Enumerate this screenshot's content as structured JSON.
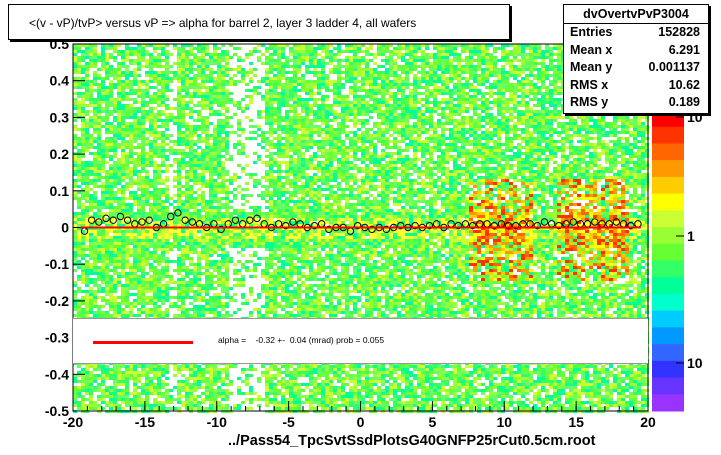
{
  "chart_data": {
    "type": "heatmap",
    "title": "<(v - vP)/tvP> versus   vP => alpha for barrel 2, layer 3 ladder 4, all wafers",
    "xlabel": "../Pass54_TpcSvtSsdPlotsG40GNFP25rCut0.5cm.root",
    "ylabel": "",
    "xlim": [
      -20,
      20
    ],
    "ylim": [
      -0.5,
      0.5
    ],
    "x_ticks": [
      "-20",
      "-15",
      "-10",
      "-5",
      "0",
      "5",
      "10",
      "15",
      "20"
    ],
    "y_ticks": [
      "-0.5",
      "-0.4",
      "-0.3",
      "-0.2",
      "-0.1",
      "0",
      "0.1",
      "0.2",
      "0.3",
      "0.4",
      "0.5"
    ],
    "colorbar": {
      "scale": "log",
      "labels": [
        "10",
        "1",
        "10"
      ]
    },
    "stats": {
      "name": "dvOvertvPvP3004",
      "rows": [
        {
          "label": "Entries",
          "value": "152828"
        },
        {
          "label": "Mean x",
          "value": "6.291"
        },
        {
          "label": "Mean y",
          "value": "0.001137"
        },
        {
          "label": "RMS x",
          "value": "10.62"
        },
        {
          "label": "RMS y",
          "value": "0.189"
        }
      ]
    },
    "fit": {
      "text": "alpha =    -0.32 +-  0.04 (mrad) prob = 0.055",
      "color": "#ff0000",
      "line_y": 0.0
    },
    "profile_points": {
      "x": [
        -19.2,
        -18.7,
        -18.2,
        -17.7,
        -17.2,
        -16.7,
        -16.2,
        -15.7,
        -15.2,
        -14.7,
        -14.2,
        -13.7,
        -13.2,
        -12.7,
        -12.2,
        -11.7,
        -11.2,
        -10.7,
        -10.2,
        -9.7,
        -9.2,
        -8.7,
        -8.2,
        -7.7,
        -7.2,
        -6.7,
        -6.2,
        -5.7,
        -5.2,
        -4.7,
        -4.2,
        -3.7,
        -3.2,
        -2.7,
        -2.2,
        -1.7,
        -1.2,
        -0.7,
        -0.2,
        0.3,
        0.8,
        1.3,
        1.8,
        2.3,
        2.8,
        3.3,
        3.8,
        4.3,
        4.8,
        5.3,
        5.8,
        6.3,
        6.8,
        7.3,
        7.8,
        8.3,
        8.8,
        9.3,
        9.8,
        10.3,
        10.8,
        11.3,
        11.8,
        12.3,
        12.8,
        13.3,
        13.8,
        14.3,
        14.8,
        15.3,
        15.8,
        16.3,
        16.8,
        17.3,
        17.8,
        18.3,
        18.8,
        19.3
      ],
      "y": [
        -0.01,
        0.02,
        0.015,
        0.025,
        0.02,
        0.03,
        0.02,
        0.01,
        0.015,
        0.02,
        0.0,
        0.01,
        0.03,
        0.04,
        0.02,
        0.015,
        0.01,
        0.0,
        0.01,
        -0.005,
        0.01,
        0.02,
        0.01,
        0.02,
        0.025,
        0.01,
        0.0,
        0.01,
        0.005,
        0.015,
        0.01,
        0.0,
        0.005,
        0.01,
        -0.005,
        0.0,
        0.0,
        -0.01,
        0.005,
        0.0,
        -0.005,
        0.0,
        -0.005,
        0.0,
        0.005,
        0.0,
        0.005,
        0.0,
        0.005,
        0.01,
        0.0,
        0.01,
        0.005,
        0.01,
        0.005,
        0.01,
        0.01,
        0.005,
        0.01,
        0.005,
        0.005,
        0.01,
        0.01,
        0.005,
        0.015,
        0.01,
        0.005,
        0.01,
        0.015,
        0.01,
        0.01,
        0.015,
        0.01,
        0.01,
        0.015,
        0.01,
        0.005,
        0.01
      ]
    }
  }
}
